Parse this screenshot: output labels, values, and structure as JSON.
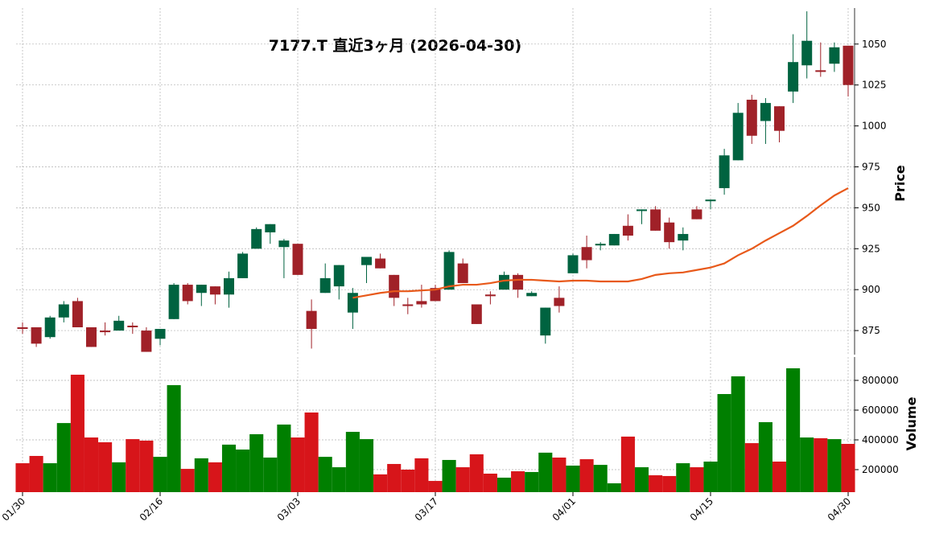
{
  "chart_data": [
    {
      "type": "candlestick",
      "title": "7177.T  直近3ヶ月  (2026-04-30)",
      "ylabel": "Price",
      "open": [
        877,
        877,
        871,
        883,
        893,
        877,
        875,
        875,
        878,
        875,
        870,
        882,
        903,
        898,
        902,
        897,
        907,
        925,
        935,
        926,
        928,
        887,
        898,
        902,
        886,
        915,
        919,
        909,
        891,
        893,
        901,
        900,
        916,
        891,
        897,
        900,
        909,
        896,
        872,
        895,
        910,
        926,
        927,
        927,
        939,
        948,
        949,
        941,
        930,
        949,
        954,
        962,
        979,
        1016,
        1003,
        1012,
        1021,
        1037,
        1034,
        1038,
        1049
      ],
      "high": [
        880,
        877,
        884,
        893,
        895,
        877,
        880,
        884,
        880,
        877,
        876,
        904,
        904,
        903,
        902,
        911,
        923,
        938,
        940,
        931,
        928,
        894,
        916,
        915,
        901,
        920,
        922,
        909,
        895,
        903,
        903,
        924,
        919,
        891,
        899,
        911,
        910,
        899,
        889,
        902,
        922,
        933,
        929,
        934,
        946,
        949,
        951,
        944,
        938,
        951,
        955,
        986,
        1014,
        1019,
        1017,
        1012,
        1056,
        1070,
        1051,
        1051,
        1049
      ],
      "low": [
        873,
        865,
        870,
        880,
        877,
        865,
        872,
        875,
        873,
        862,
        866,
        882,
        891,
        890,
        891,
        889,
        907,
        925,
        928,
        907,
        909,
        864,
        898,
        894,
        876,
        904,
        913,
        890,
        885,
        889,
        893,
        900,
        904,
        879,
        891,
        900,
        895,
        896,
        867,
        886,
        910,
        913,
        924,
        927,
        930,
        940,
        936,
        925,
        924,
        943,
        949,
        958,
        979,
        989,
        989,
        990,
        1014,
        1029,
        1030,
        1033,
        1018
      ],
      "close": [
        876,
        867,
        883,
        891,
        877,
        865,
        874,
        881,
        877,
        862,
        876,
        903,
        893,
        903,
        897,
        907,
        922,
        937,
        940,
        930,
        909,
        876,
        907,
        915,
        898,
        920,
        913,
        895,
        890,
        891,
        893,
        923,
        904,
        879,
        896,
        909,
        900,
        898,
        889,
        890,
        921,
        918,
        928,
        934,
        933,
        949,
        936,
        929,
        934,
        943,
        955,
        982,
        1008,
        994,
        1014,
        997,
        1039,
        1052,
        1033,
        1048,
        1025
      ],
      "up_color": "#006340",
      "down_color": "#a02128",
      "line": {
        "color": "#e8591a",
        "values": [
          null,
          null,
          null,
          null,
          null,
          null,
          null,
          null,
          null,
          null,
          null,
          null,
          null,
          null,
          null,
          null,
          null,
          null,
          null,
          null,
          null,
          null,
          null,
          null,
          895,
          896.5,
          898,
          899,
          899,
          899.5,
          900,
          902,
          903,
          903,
          904,
          905.5,
          906,
          906,
          905.5,
          905,
          905.5,
          905.5,
          905,
          905,
          905,
          906.5,
          909,
          910,
          910.5,
          912,
          913.5,
          916,
          921,
          925,
          930,
          934.5,
          939,
          945,
          951.5,
          957.5,
          962
        ]
      },
      "ylim": [
        860.3,
        1072
      ],
      "yticks": [
        875,
        900,
        925,
        950,
        975,
        1000,
        1025,
        1050
      ],
      "grid": true
    },
    {
      "type": "bar",
      "ylabel": "Volume",
      "categories": [
        "01/30",
        null,
        null,
        null,
        null,
        null,
        null,
        null,
        null,
        null,
        "02/16",
        null,
        null,
        null,
        null,
        null,
        null,
        null,
        null,
        null,
        "03/03",
        null,
        null,
        null,
        null,
        null,
        null,
        null,
        null,
        null,
        "03/17",
        null,
        null,
        null,
        null,
        null,
        null,
        null,
        null,
        null,
        "04/01",
        null,
        null,
        null,
        null,
        null,
        null,
        null,
        null,
        null,
        "04/15",
        null,
        null,
        null,
        null,
        null,
        null,
        null,
        null,
        null,
        "04/30"
      ],
      "values": [
        243000,
        292000,
        243000,
        513000,
        838000,
        416000,
        384000,
        249000,
        405000,
        395000,
        286000,
        768000,
        205000,
        276000,
        249000,
        368000,
        335000,
        438000,
        281000,
        503000,
        416000,
        584000,
        286000,
        216000,
        454000,
        405000,
        168000,
        238000,
        200000,
        276000,
        124000,
        265000,
        216000,
        303000,
        173000,
        146000,
        189000,
        184000,
        314000,
        281000,
        227000,
        270000,
        232000,
        108000,
        422000,
        216000,
        162000,
        157000,
        243000,
        216000,
        254000,
        708000,
        827000,
        378000,
        519000,
        254000,
        881000,
        416000,
        411000,
        405000,
        373000
      ],
      "up_color": "#007f00",
      "down_color": "#d7151a",
      "ylim": [
        48660,
        956700
      ],
      "yticks": [
        200000,
        400000,
        600000,
        800000
      ],
      "grid": true
    }
  ]
}
